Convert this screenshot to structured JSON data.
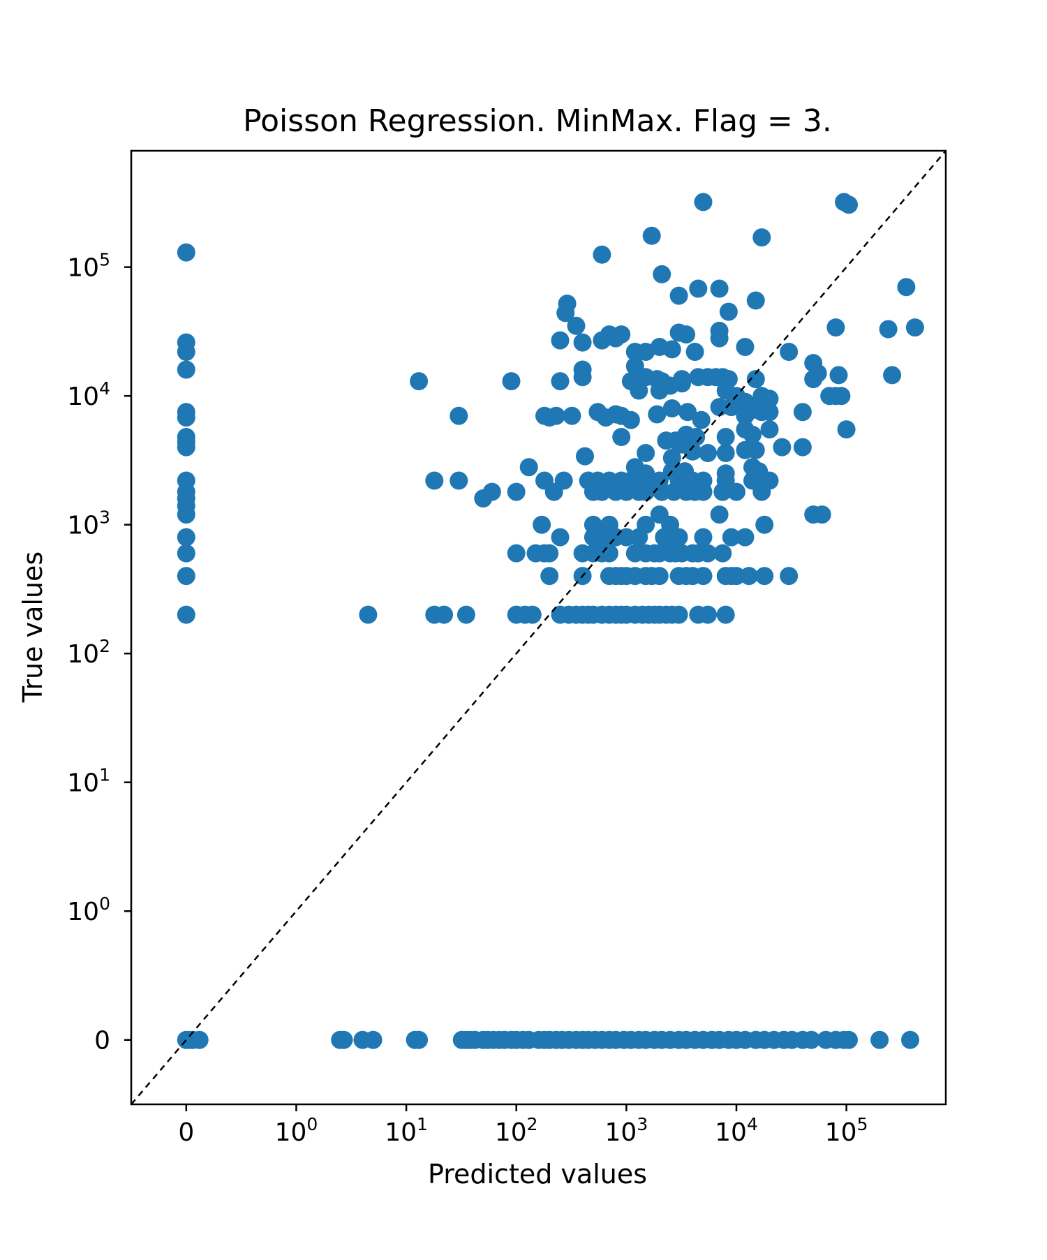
{
  "chart_data": {
    "type": "scatter",
    "title": "Poisson Regression. MinMax. Flag = 3.",
    "xlabel": "Predicted values",
    "ylabel": "True values",
    "xscale": "symlog",
    "yscale": "symlog",
    "xlim": [
      -0.5,
      800000
    ],
    "ylim": [
      -0.5,
      800000
    ],
    "grid": false,
    "legend": "none",
    "marker_color": "#1f77b4",
    "reference_line": {
      "style": "dashed",
      "color": "#000000",
      "description": "y = x"
    },
    "x_ticks": [
      {
        "value": 0,
        "base": "0",
        "exp": ""
      },
      {
        "value": 1,
        "base": "10",
        "exp": "0"
      },
      {
        "value": 10,
        "base": "10",
        "exp": "1"
      },
      {
        "value": 100,
        "base": "10",
        "exp": "2"
      },
      {
        "value": 1000,
        "base": "10",
        "exp": "3"
      },
      {
        "value": 10000,
        "base": "10",
        "exp": "4"
      },
      {
        "value": 100000,
        "base": "10",
        "exp": "5"
      }
    ],
    "y_ticks": [
      {
        "value": 0,
        "base": "0",
        "exp": ""
      },
      {
        "value": 1,
        "base": "10",
        "exp": "0"
      },
      {
        "value": 10,
        "base": "10",
        "exp": "1"
      },
      {
        "value": 100,
        "base": "10",
        "exp": "2"
      },
      {
        "value": 1000,
        "base": "10",
        "exp": "3"
      },
      {
        "value": 10000,
        "base": "10",
        "exp": "4"
      },
      {
        "value": 100000,
        "base": "10",
        "exp": "5"
      }
    ],
    "points": [
      [
        0,
        130000
      ],
      [
        0,
        26000
      ],
      [
        0,
        22000
      ],
      [
        0,
        16000
      ],
      [
        0,
        7500
      ],
      [
        0,
        6800
      ],
      [
        0,
        4800
      ],
      [
        0,
        4400
      ],
      [
        0,
        4000
      ],
      [
        0,
        2200
      ],
      [
        0,
        1800
      ],
      [
        0,
        1600
      ],
      [
        0,
        1400
      ],
      [
        0,
        1200
      ],
      [
        0,
        800
      ],
      [
        0,
        600
      ],
      [
        0,
        400
      ],
      [
        0,
        200
      ],
      [
        0,
        0
      ],
      [
        0.03,
        0
      ],
      [
        0.06,
        0
      ],
      [
        0.12,
        0
      ],
      [
        2.5,
        0
      ],
      [
        2.7,
        0
      ],
      [
        4,
        0
      ],
      [
        5,
        0
      ],
      [
        12,
        0
      ],
      [
        13,
        0
      ],
      [
        32,
        0
      ],
      [
        35,
        0
      ],
      [
        38,
        0
      ],
      [
        42,
        0
      ],
      [
        50,
        0
      ],
      [
        55,
        0
      ],
      [
        62,
        0
      ],
      [
        70,
        0
      ],
      [
        78,
        0
      ],
      [
        90,
        0
      ],
      [
        100,
        0
      ],
      [
        115,
        0
      ],
      [
        130,
        0
      ],
      [
        160,
        0
      ],
      [
        180,
        0
      ],
      [
        200,
        0
      ],
      [
        230,
        0
      ],
      [
        260,
        0
      ],
      [
        300,
        0
      ],
      [
        350,
        0
      ],
      [
        400,
        0
      ],
      [
        450,
        0
      ],
      [
        520,
        0
      ],
      [
        600,
        0
      ],
      [
        700,
        0
      ],
      [
        800,
        0
      ],
      [
        950,
        0
      ],
      [
        1100,
        0
      ],
      [
        1300,
        0
      ],
      [
        1500,
        0
      ],
      [
        1800,
        0
      ],
      [
        2100,
        0
      ],
      [
        2500,
        0
      ],
      [
        3000,
        0
      ],
      [
        3500,
        0
      ],
      [
        4200,
        0
      ],
      [
        5000,
        0
      ],
      [
        6000,
        0
      ],
      [
        7000,
        0
      ],
      [
        8500,
        0
      ],
      [
        10000,
        0
      ],
      [
        12000,
        0
      ],
      [
        15000,
        0
      ],
      [
        18000,
        0
      ],
      [
        22000,
        0
      ],
      [
        27000,
        0
      ],
      [
        32000,
        0
      ],
      [
        40000,
        0
      ],
      [
        48000,
        0
      ],
      [
        65000,
        0
      ],
      [
        80000,
        0
      ],
      [
        95000,
        0
      ],
      [
        105000,
        0
      ],
      [
        200000,
        0
      ],
      [
        380000,
        0
      ],
      [
        4.5,
        200
      ],
      [
        18,
        200
      ],
      [
        22,
        200
      ],
      [
        35,
        200
      ],
      [
        100,
        200
      ],
      [
        120,
        200
      ],
      [
        140,
        200
      ],
      [
        250,
        200
      ],
      [
        300,
        200
      ],
      [
        350,
        200
      ],
      [
        400,
        200
      ],
      [
        450,
        200
      ],
      [
        500,
        200
      ],
      [
        600,
        200
      ],
      [
        700,
        200
      ],
      [
        800,
        200
      ],
      [
        900,
        200
      ],
      [
        1000,
        200
      ],
      [
        1200,
        200
      ],
      [
        1400,
        200
      ],
      [
        1600,
        200
      ],
      [
        1800,
        200
      ],
      [
        2000,
        200
      ],
      [
        2300,
        200
      ],
      [
        2600,
        200
      ],
      [
        3000,
        200
      ],
      [
        4500,
        200
      ],
      [
        5500,
        200
      ],
      [
        8000,
        200
      ],
      [
        200,
        400
      ],
      [
        400,
        400
      ],
      [
        700,
        400
      ],
      [
        800,
        400
      ],
      [
        900,
        400
      ],
      [
        1000,
        400
      ],
      [
        1200,
        400
      ],
      [
        1500,
        400
      ],
      [
        1700,
        400
      ],
      [
        2000,
        400
      ],
      [
        3000,
        400
      ],
      [
        3500,
        400
      ],
      [
        4000,
        400
      ],
      [
        5000,
        400
      ],
      [
        8000,
        400
      ],
      [
        9000,
        400
      ],
      [
        10000,
        400
      ],
      [
        13000,
        400
      ],
      [
        18000,
        400
      ],
      [
        30000,
        400
      ],
      [
        100,
        600
      ],
      [
        150,
        600
      ],
      [
        180,
        600
      ],
      [
        200,
        600
      ],
      [
        400,
        600
      ],
      [
        500,
        600
      ],
      [
        600,
        600
      ],
      [
        700,
        600
      ],
      [
        1200,
        600
      ],
      [
        1500,
        600
      ],
      [
        1800,
        600
      ],
      [
        2000,
        600
      ],
      [
        2500,
        600
      ],
      [
        2800,
        600
      ],
      [
        3200,
        600
      ],
      [
        4000,
        600
      ],
      [
        4500,
        600
      ],
      [
        5500,
        600
      ],
      [
        7500,
        600
      ],
      [
        250,
        800
      ],
      [
        500,
        800
      ],
      [
        600,
        800
      ],
      [
        700,
        800
      ],
      [
        800,
        800
      ],
      [
        1000,
        800
      ],
      [
        1300,
        800
      ],
      [
        2200,
        800
      ],
      [
        2600,
        800
      ],
      [
        3000,
        800
      ],
      [
        5000,
        800
      ],
      [
        9000,
        800
      ],
      [
        12000,
        800
      ],
      [
        170,
        1000
      ],
      [
        500,
        1000
      ],
      [
        700,
        1000
      ],
      [
        1500,
        1000
      ],
      [
        2500,
        1000
      ],
      [
        18000,
        1000
      ],
      [
        2000,
        1200
      ],
      [
        7000,
        1200
      ],
      [
        50000,
        1200
      ],
      [
        60000,
        1200
      ],
      [
        100,
        1800
      ],
      [
        220,
        1800
      ],
      [
        500,
        1800
      ],
      [
        600,
        1800
      ],
      [
        800,
        1800
      ],
      [
        1000,
        1800
      ],
      [
        1300,
        1800
      ],
      [
        1500,
        1800
      ],
      [
        2100,
        1800
      ],
      [
        2700,
        1800
      ],
      [
        3500,
        1800
      ],
      [
        4200,
        1800
      ],
      [
        5000,
        1800
      ],
      [
        7500,
        1800
      ],
      [
        10000,
        1800
      ],
      [
        17000,
        1800
      ],
      [
        18,
        2200
      ],
      [
        30,
        2200
      ],
      [
        180,
        2200
      ],
      [
        270,
        2200
      ],
      [
        450,
        2200
      ],
      [
        550,
        2200
      ],
      [
        700,
        2200
      ],
      [
        900,
        2200
      ],
      [
        1100,
        2200
      ],
      [
        1300,
        2200
      ],
      [
        1600,
        2200
      ],
      [
        2000,
        2200
      ],
      [
        3000,
        2200
      ],
      [
        4000,
        2200
      ],
      [
        5000,
        2200
      ],
      [
        8000,
        2200
      ],
      [
        14000,
        2200
      ],
      [
        20000,
        2200
      ],
      [
        50,
        1600
      ],
      [
        60,
        1800
      ],
      [
        130,
        2800
      ],
      [
        1200,
        2800
      ],
      [
        1500,
        2500
      ],
      [
        2600,
        2600
      ],
      [
        3400,
        2600
      ],
      [
        8000,
        2500
      ],
      [
        14000,
        2800
      ],
      [
        16000,
        2600
      ],
      [
        420,
        3400
      ],
      [
        1500,
        3600
      ],
      [
        2600,
        3300
      ],
      [
        3200,
        4200
      ],
      [
        4000,
        3700
      ],
      [
        5500,
        3600
      ],
      [
        8000,
        3600
      ],
      [
        12000,
        3800
      ],
      [
        15000,
        3800
      ],
      [
        26000,
        4000
      ],
      [
        40000,
        4000
      ],
      [
        900,
        4800
      ],
      [
        2300,
        4500
      ],
      [
        2800,
        4500
      ],
      [
        3500,
        5000
      ],
      [
        4300,
        4800
      ],
      [
        8000,
        4800
      ],
      [
        12000,
        5500
      ],
      [
        14000,
        5000
      ],
      [
        20000,
        5500
      ],
      [
        100000,
        5500
      ],
      [
        30,
        7000
      ],
      [
        180,
        7000
      ],
      [
        200,
        6800
      ],
      [
        230,
        7000
      ],
      [
        320,
        7000
      ],
      [
        550,
        7500
      ],
      [
        650,
        6800
      ],
      [
        800,
        7200
      ],
      [
        900,
        7000
      ],
      [
        1100,
        6500
      ],
      [
        1900,
        7200
      ],
      [
        2600,
        8000
      ],
      [
        3600,
        7500
      ],
      [
        4800,
        6500
      ],
      [
        7000,
        8200
      ],
      [
        9000,
        8200
      ],
      [
        12000,
        7000
      ],
      [
        14000,
        7800
      ],
      [
        17000,
        7500
      ],
      [
        20000,
        7500
      ],
      [
        40000,
        7500
      ],
      [
        1300,
        11000
      ],
      [
        2000,
        11000
      ],
      [
        2500,
        12000
      ],
      [
        3200,
        12500
      ],
      [
        8000,
        11000
      ],
      [
        10000,
        10000
      ],
      [
        12000,
        9000
      ],
      [
        17000,
        10000
      ],
      [
        20000,
        9500
      ],
      [
        70000,
        10000
      ],
      [
        80000,
        10000
      ],
      [
        90000,
        10000
      ],
      [
        13,
        13000
      ],
      [
        90,
        13000
      ],
      [
        250,
        13000
      ],
      [
        400,
        14000
      ],
      [
        1100,
        13000
      ],
      [
        1500,
        14000
      ],
      [
        1900,
        13500
      ],
      [
        2100,
        13000
      ],
      [
        3200,
        13500
      ],
      [
        4500,
        14000
      ],
      [
        5500,
        14000
      ],
      [
        6500,
        14000
      ],
      [
        7500,
        14000
      ],
      [
        8500,
        13500
      ],
      [
        15000,
        13500
      ],
      [
        50000,
        13500
      ],
      [
        55000,
        15000
      ],
      [
        85000,
        14500
      ],
      [
        260000,
        14500
      ],
      [
        400,
        16000
      ],
      [
        1200,
        17000
      ],
      [
        50000,
        18000
      ],
      [
        30000,
        22000
      ],
      [
        250,
        27000
      ],
      [
        400,
        26000
      ],
      [
        600,
        27000
      ],
      [
        700,
        30000
      ],
      [
        800,
        28000
      ],
      [
        900,
        30000
      ],
      [
        1200,
        22000
      ],
      [
        1500,
        22000
      ],
      [
        2000,
        24000
      ],
      [
        2600,
        23000
      ],
      [
        3000,
        31000
      ],
      [
        3500,
        30000
      ],
      [
        4200,
        22000
      ],
      [
        7000,
        28000
      ],
      [
        7000,
        32000
      ],
      [
        12000,
        24000
      ],
      [
        80000,
        34000
      ],
      [
        240000,
        33000
      ],
      [
        420000,
        34000
      ],
      [
        280,
        44000
      ],
      [
        290,
        52000
      ],
      [
        350,
        35000
      ],
      [
        3000,
        60000
      ],
      [
        4500,
        68000
      ],
      [
        7000,
        68000
      ],
      [
        8500,
        45000
      ],
      [
        15000,
        55000
      ],
      [
        350000,
        70000
      ],
      [
        600,
        125000
      ],
      [
        1700,
        175000
      ],
      [
        2100,
        88000
      ],
      [
        17000,
        170000
      ],
      [
        5000,
        320000
      ],
      [
        95000,
        320000
      ],
      [
        105000,
        305000
      ]
    ]
  }
}
